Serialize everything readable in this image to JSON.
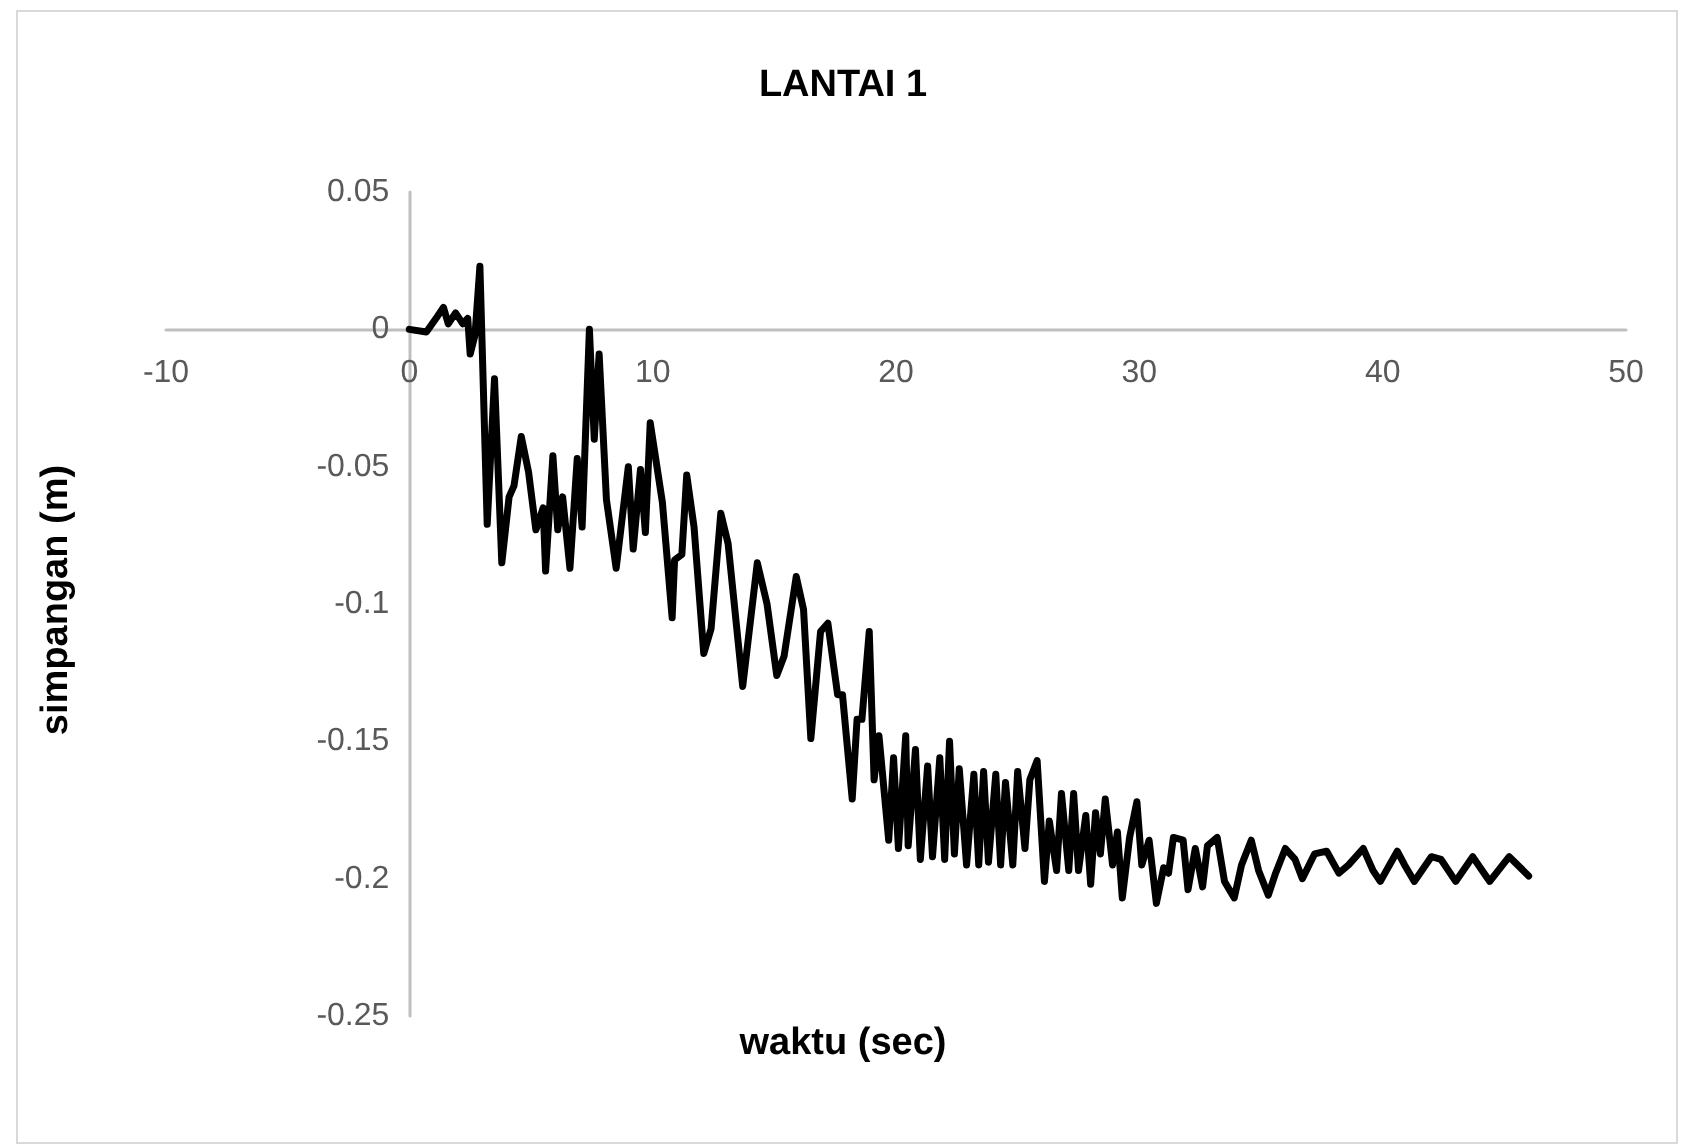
{
  "chart_data": {
    "type": "line",
    "title": "LANTAI 1",
    "xlabel": "waktu (sec)",
    "ylabel": "simpangan (m)",
    "xlim": [
      -10,
      50
    ],
    "xticks": [
      -10,
      0,
      10,
      20,
      30,
      40,
      50
    ],
    "ylim": [
      -0.25,
      0.05
    ],
    "yticks": [
      -0.25,
      -0.2,
      -0.15,
      -0.1,
      -0.05,
      0,
      0.05
    ],
    "grid": false,
    "legend": false,
    "marker": "none",
    "line_style": "solid",
    "series": [
      {
        "color": "#000000",
        "x": [
          0,
          0.7,
          1.1,
          1.4,
          1.6,
          1.9,
          2.2,
          2.4,
          2.5,
          2.7,
          2.9,
          3.2,
          3.5,
          3.8,
          4.1,
          4.3,
          4.6,
          4.9,
          5.2,
          5.5,
          5.6,
          5.9,
          6.1,
          6.3,
          6.6,
          6.9,
          7.1,
          7.4,
          7.6,
          7.8,
          8.1,
          8.5,
          9.0,
          9.2,
          9.5,
          9.7,
          9.9,
          10.4,
          10.8,
          10.9,
          11.2,
          11.4,
          11.7,
          12.1,
          12.4,
          12.8,
          13.1,
          13.7,
          14.3,
          14.7,
          15.1,
          15.4,
          15.9,
          16.2,
          16.5,
          16.9,
          17.2,
          17.6,
          17.8,
          18.2,
          18.4,
          18.6,
          18.9,
          19.1,
          19.3,
          19.7,
          19.9,
          20.1,
          20.4,
          20.5,
          20.8,
          21.0,
          21.3,
          21.5,
          21.8,
          22.0,
          22.2,
          22.4,
          22.6,
          22.9,
          23.2,
          23.4,
          23.6,
          23.8,
          24.1,
          24.3,
          24.5,
          24.8,
          25.0,
          25.3,
          25.5,
          25.8,
          26.1,
          26.3,
          26.6,
          26.8,
          27.1,
          27.3,
          27.5,
          27.8,
          28.0,
          28.2,
          28.4,
          28.6,
          28.9,
          29.1,
          29.3,
          29.6,
          29.9,
          30.1,
          30.4,
          30.7,
          31.0,
          31.2,
          31.4,
          31.8,
          32.0,
          32.3,
          32.6,
          32.8,
          33.2,
          33.5,
          33.9,
          34.2,
          34.6,
          34.9,
          35.3,
          35.6,
          36.0,
          36.4,
          36.7,
          37.2,
          37.7,
          38.2,
          38.6,
          39.2,
          39.6,
          39.9,
          40.6,
          40.9,
          41.3,
          42.0,
          42.4,
          43.0,
          43.7,
          44.4,
          45.2,
          46.0
        ],
        "values": [
          0,
          -0.001,
          0.004,
          0.008,
          0.002,
          0.006,
          0.002,
          0.004,
          -0.009,
          -0.002,
          0.023,
          -0.071,
          -0.018,
          -0.085,
          -0.061,
          -0.057,
          -0.039,
          -0.052,
          -0.073,
          -0.065,
          -0.088,
          -0.046,
          -0.073,
          -0.061,
          -0.087,
          -0.047,
          -0.072,
          0,
          -0.04,
          -0.009,
          -0.062,
          -0.087,
          -0.05,
          -0.08,
          -0.051,
          -0.074,
          -0.034,
          -0.063,
          -0.105,
          -0.084,
          -0.082,
          -0.053,
          -0.072,
          -0.118,
          -0.109,
          -0.067,
          -0.078,
          -0.13,
          -0.085,
          -0.1,
          -0.126,
          -0.119,
          -0.09,
          -0.102,
          -0.149,
          -0.11,
          -0.107,
          -0.133,
          -0.133,
          -0.171,
          -0.142,
          -0.142,
          -0.11,
          -0.164,
          -0.148,
          -0.186,
          -0.156,
          -0.189,
          -0.148,
          -0.188,
          -0.153,
          -0.193,
          -0.159,
          -0.192,
          -0.156,
          -0.193,
          -0.15,
          -0.191,
          -0.16,
          -0.195,
          -0.162,
          -0.195,
          -0.161,
          -0.194,
          -0.162,
          -0.195,
          -0.165,
          -0.195,
          -0.161,
          -0.189,
          -0.164,
          -0.157,
          -0.201,
          -0.179,
          -0.197,
          -0.169,
          -0.197,
          -0.169,
          -0.197,
          -0.177,
          -0.202,
          -0.176,
          -0.191,
          -0.171,
          -0.195,
          -0.183,
          -0.207,
          -0.185,
          -0.172,
          -0.195,
          -0.186,
          -0.209,
          -0.196,
          -0.198,
          -0.185,
          -0.186,
          -0.204,
          -0.189,
          -0.203,
          -0.188,
          -0.185,
          -0.201,
          -0.207,
          -0.195,
          -0.186,
          -0.197,
          -0.206,
          -0.198,
          -0.189,
          -0.193,
          -0.2,
          -0.191,
          -0.19,
          -0.198,
          -0.195,
          -0.189,
          -0.197,
          -0.201,
          -0.19,
          -0.195,
          -0.201,
          -0.192,
          -0.193,
          -0.201,
          -0.192,
          -0.201,
          -0.192,
          -0.199
        ]
      }
    ]
  }
}
